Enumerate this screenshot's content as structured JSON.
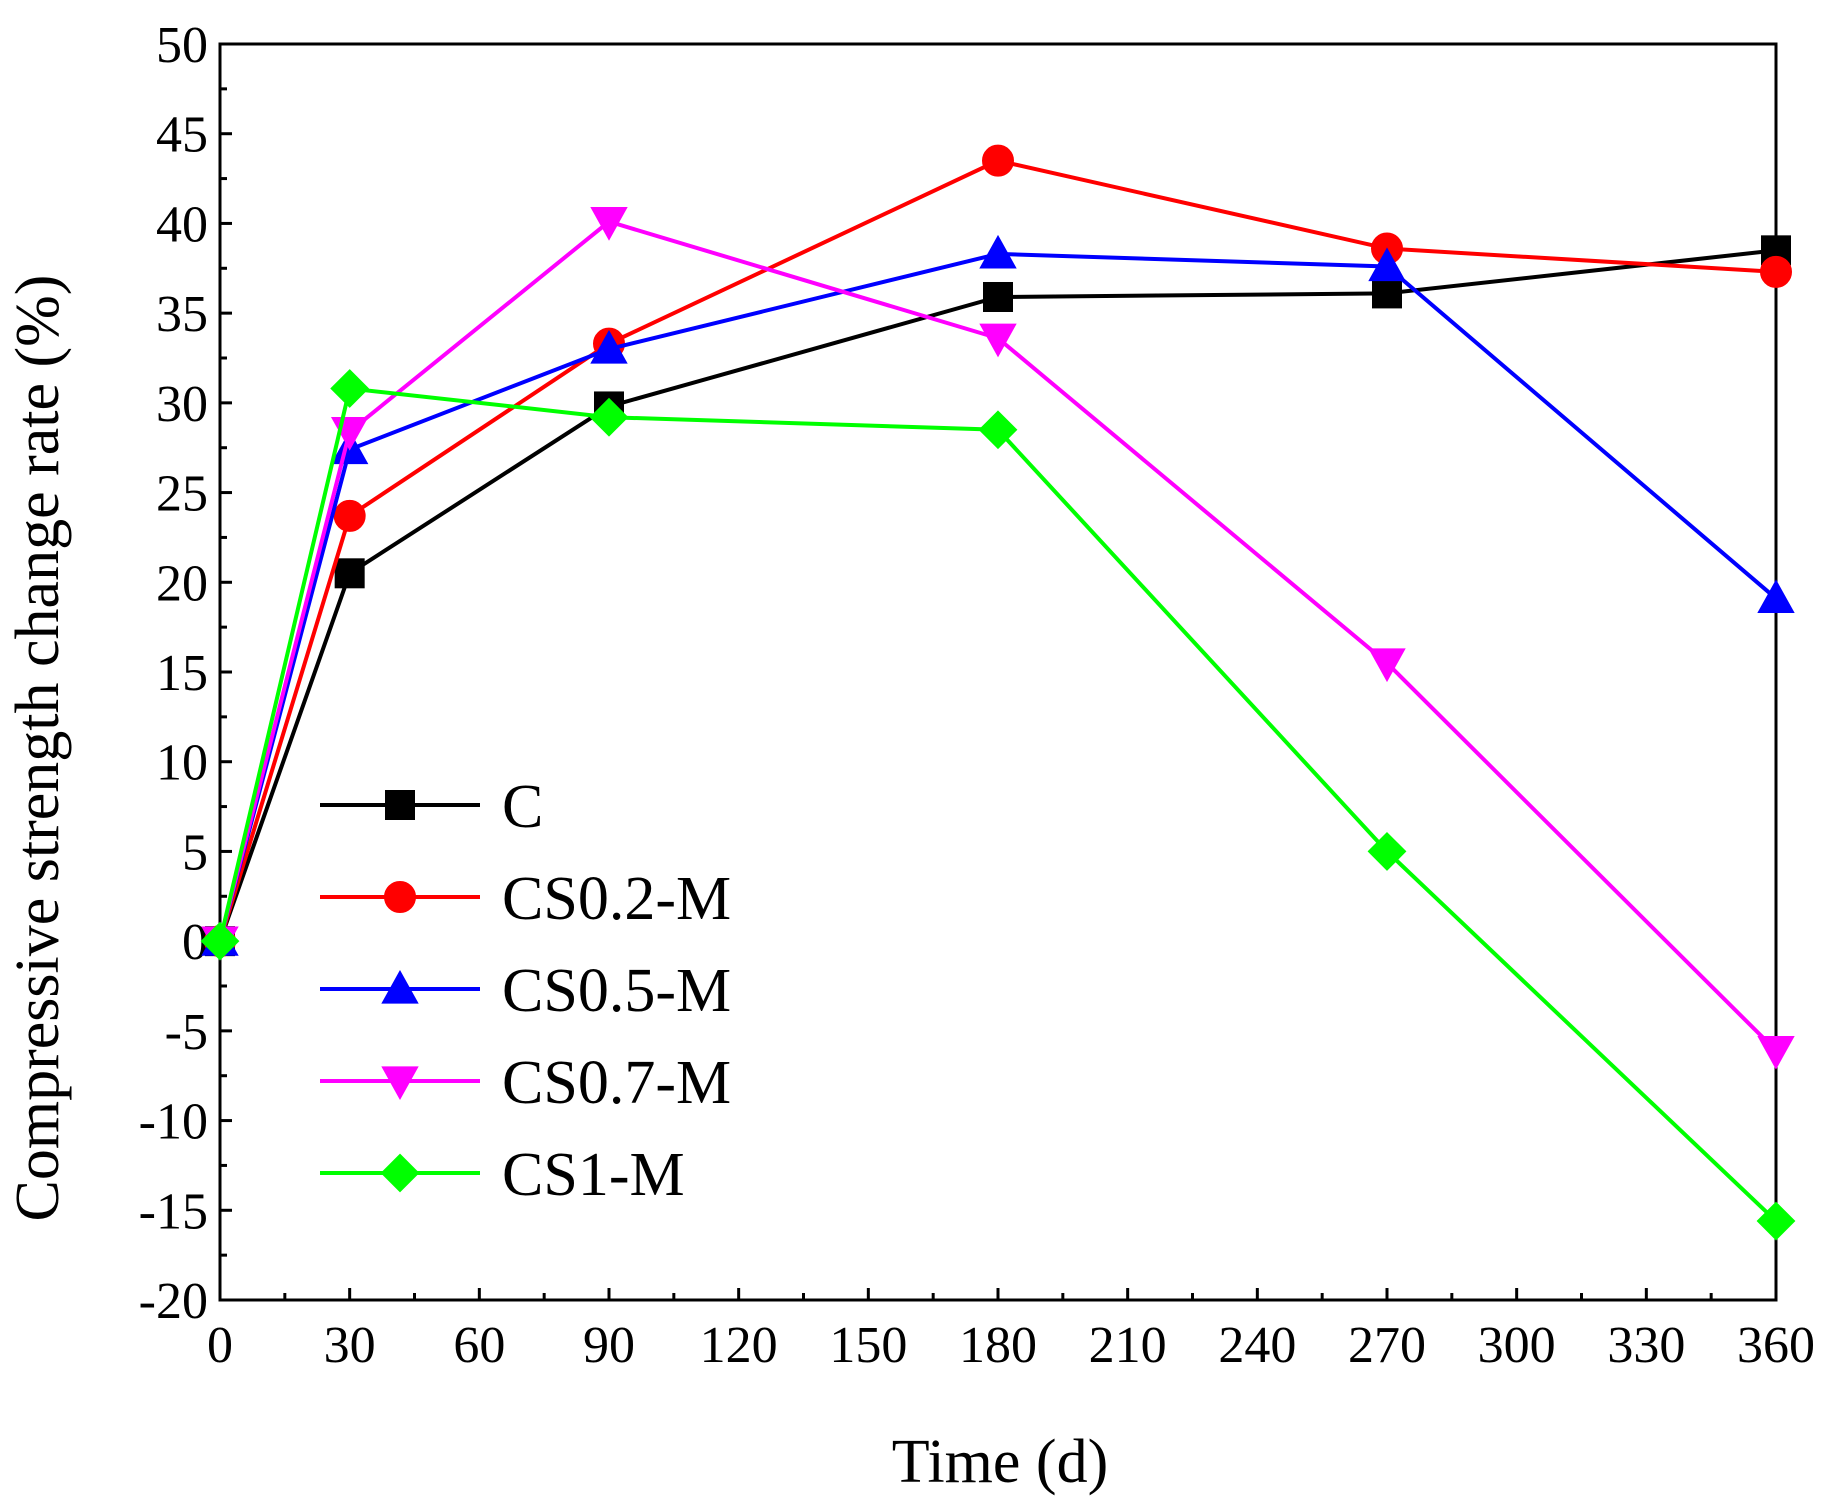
{
  "chart_data": {
    "type": "line",
    "title": "",
    "xlabel": "Time (d)",
    "ylabel": "Compressive strength change rate (%)",
    "xlim": [
      0,
      360
    ],
    "ylim": [
      -20,
      50
    ],
    "xticks": [
      "0",
      "30",
      "60",
      "90",
      "120",
      "150",
      "180",
      "210",
      "240",
      "270",
      "300",
      "330",
      "360"
    ],
    "yticks": [
      "50",
      "45",
      "40",
      "35",
      "30",
      "25",
      "20",
      "15",
      "10",
      "5",
      "0",
      "-5",
      "-10",
      "-15",
      "-20"
    ],
    "x": [
      0,
      30,
      90,
      180,
      270,
      360
    ],
    "legend_position": "lower-left",
    "series": [
      {
        "name": "C",
        "color": "#000000",
        "marker": "square",
        "values": [
          0,
          20.5,
          29.8,
          35.9,
          36.1,
          38.5
        ]
      },
      {
        "name": "CS0.2-M",
        "color": "#ff0000",
        "marker": "circle",
        "values": [
          0,
          23.7,
          33.3,
          43.5,
          38.6,
          37.3
        ]
      },
      {
        "name": "CS0.5-M",
        "color": "#0000ff",
        "marker": "triangle-up",
        "values": [
          0,
          27.4,
          33.0,
          38.3,
          37.6,
          19.1
        ]
      },
      {
        "name": "CS0.7-M",
        "color": "#ff00ff",
        "marker": "triangle-down",
        "values": [
          0,
          28.4,
          40.1,
          33.6,
          15.5,
          -6.1
        ]
      },
      {
        "name": "CS1-M",
        "color": "#00ff00",
        "marker": "diamond",
        "values": [
          0,
          30.8,
          29.2,
          28.5,
          5.0,
          -15.6
        ]
      }
    ]
  }
}
